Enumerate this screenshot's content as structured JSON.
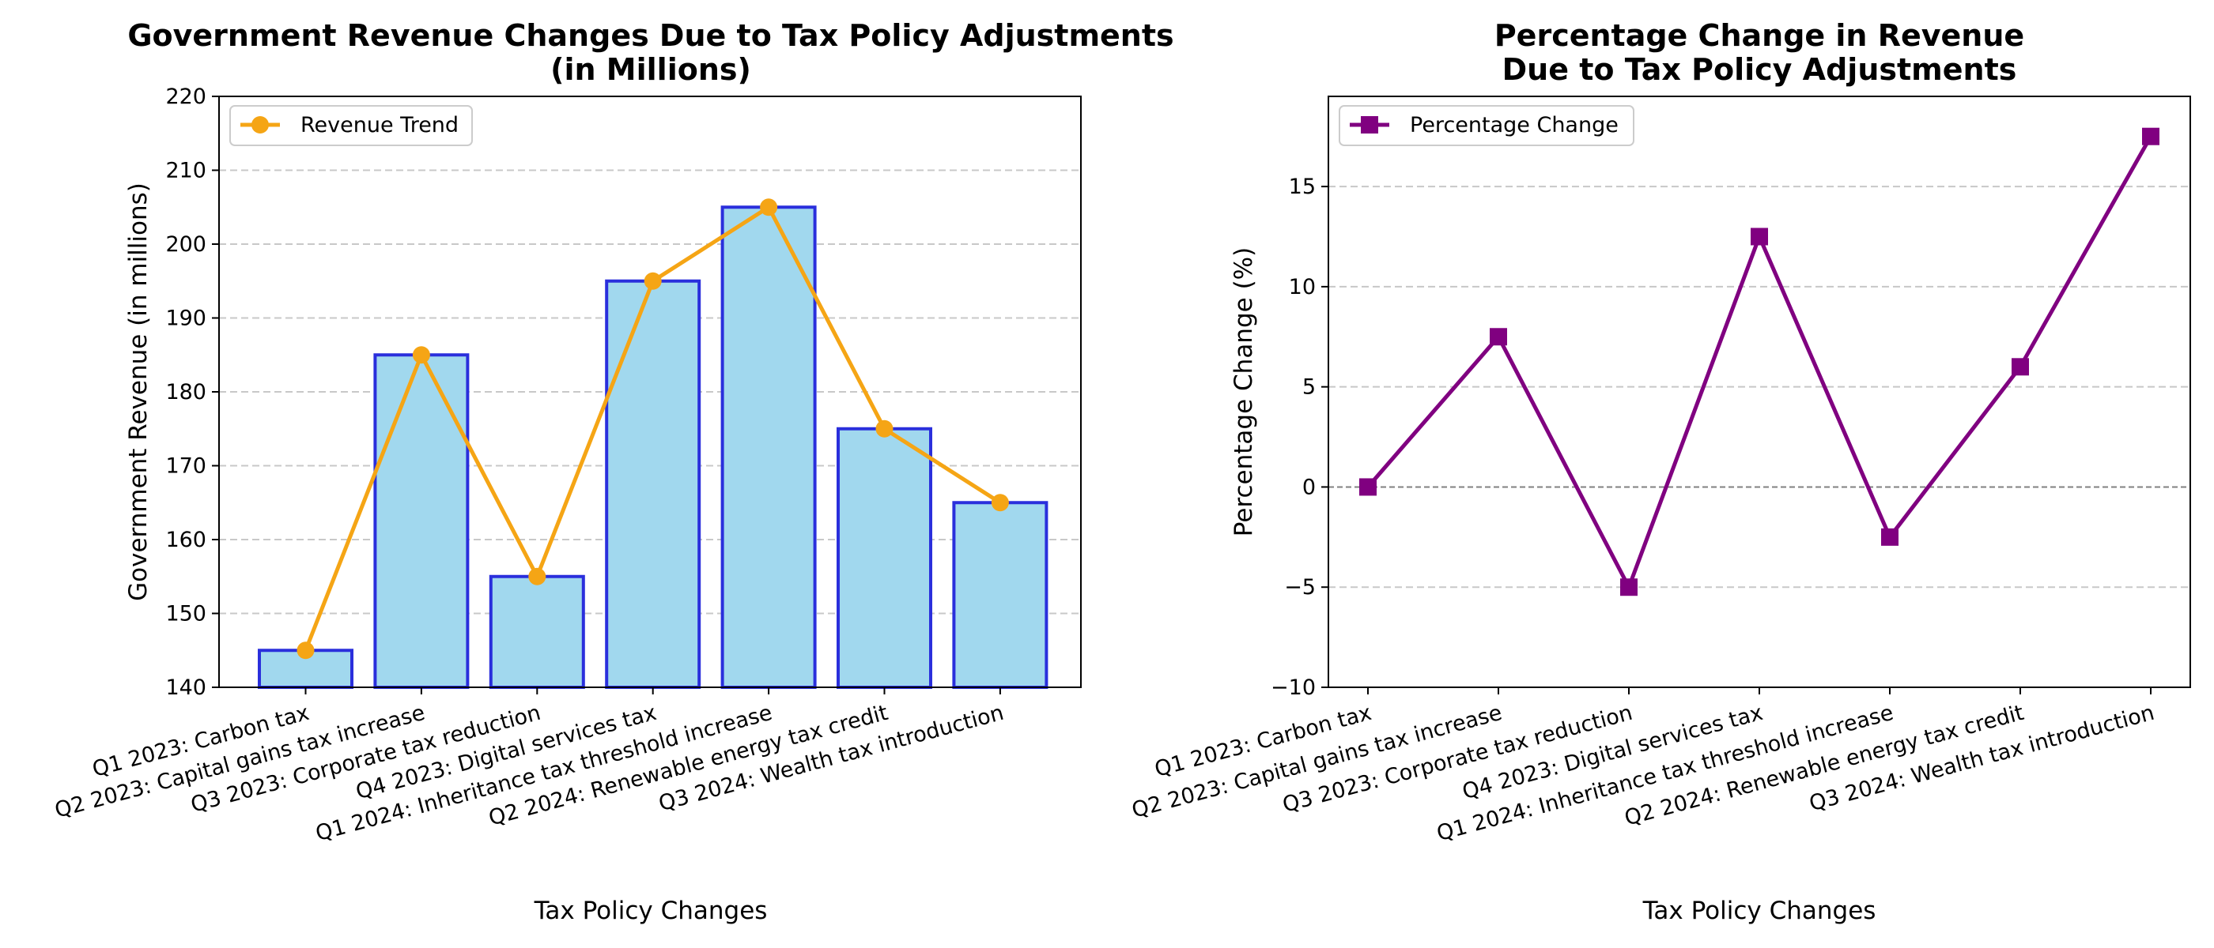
{
  "chart_data": [
    {
      "type": "bar",
      "title": [
        "Government Revenue Changes Due to Tax Policy Adjustments",
        "(in Millions)"
      ],
      "xlabel": "Tax Policy Changes",
      "ylabel": "Government Revenue (in millions)",
      "categories": [
        "Q1 2023: Carbon tax",
        "Q2 2023: Capital gains tax increase",
        "Q3 2023: Corporate tax reduction",
        "Q4 2023: Digital services tax",
        "Q1 2024: Inheritance tax threshold increase",
        "Q2 2024: Renewable energy tax credit",
        "Q3 2024: Wealth tax introduction"
      ],
      "values": [
        145,
        185,
        155,
        195,
        205,
        175,
        165
      ],
      "series": [
        {
          "name": "Revenue Trend",
          "type": "line",
          "values": [
            145,
            185,
            155,
            195,
            205,
            175,
            165
          ]
        }
      ],
      "ylim": [
        140,
        220
      ],
      "yticks": [
        140,
        150,
        160,
        170,
        180,
        190,
        200,
        210,
        220
      ],
      "grid": "y-dashed",
      "legend": "top-left",
      "colors": {
        "bar_fill": "#a1d8ee",
        "bar_edge": "#2a2fdc",
        "line": "#f5a515"
      }
    },
    {
      "type": "line",
      "title": [
        "Percentage Change in Revenue",
        "Due to Tax Policy Adjustments"
      ],
      "xlabel": "Tax Policy Changes",
      "ylabel": "Percentage Change (%)",
      "categories": [
        "Q1 2023: Carbon tax",
        "Q2 2023: Capital gains tax increase",
        "Q3 2023: Corporate tax reduction",
        "Q4 2023: Digital services tax",
        "Q1 2024: Inheritance tax threshold increase",
        "Q2 2024: Renewable energy tax credit",
        "Q3 2024: Wealth tax introduction"
      ],
      "series": [
        {
          "name": "Percentage Change",
          "values": [
            0,
            7.5,
            -5,
            12.5,
            -2.5,
            6,
            17.5
          ]
        }
      ],
      "ylim": [
        -10,
        19.5
      ],
      "yticks": [
        -10,
        -5,
        0,
        5,
        10,
        15
      ],
      "ytick_labels": [
        "−10",
        "−5",
        "0",
        "5",
        "10",
        "15"
      ],
      "grid": "y-dashed",
      "zero_line": true,
      "legend": "top-left",
      "colors": {
        "line": "#800080"
      }
    }
  ]
}
